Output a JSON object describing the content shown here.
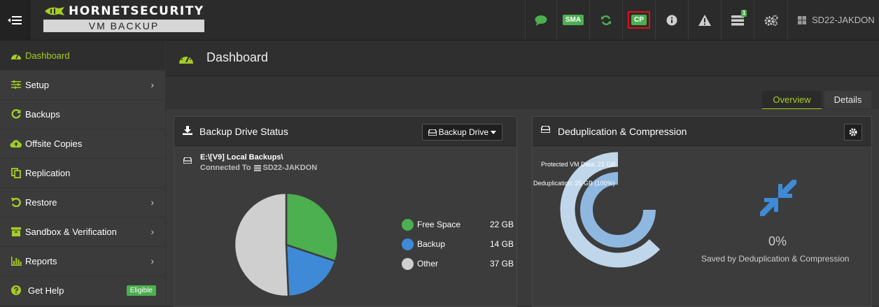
{
  "brand": {
    "name": "HORNETSECURITY",
    "product": "VM BACKUP"
  },
  "toolbar": {
    "sma_label": "SMA",
    "cp_label": "CP",
    "notifications_count": "1",
    "host_name": "SD22-JAKDON"
  },
  "sidebar": {
    "items": [
      {
        "label": "Dashboard",
        "icon": "dashboard-icon"
      },
      {
        "label": "Setup",
        "icon": "sliders-icon"
      },
      {
        "label": "Backups",
        "icon": "refresh-icon"
      },
      {
        "label": "Offsite Copies",
        "icon": "cloud-upload-icon"
      },
      {
        "label": "Replication",
        "icon": "copy-icon"
      },
      {
        "label": "Restore",
        "icon": "undo-icon"
      },
      {
        "label": "Sandbox & Verification",
        "icon": "archive-icon"
      },
      {
        "label": "Reports",
        "icon": "bar-chart-icon"
      },
      {
        "label": "Get Help",
        "icon": "question-icon"
      }
    ],
    "eligible_badge": "Eligible"
  },
  "page": {
    "title": "Dashboard"
  },
  "tabs": {
    "overview": "Overview",
    "details": "Details"
  },
  "backup_drive_panel": {
    "title": "Backup Drive Status",
    "drive_button": "Backup Drive",
    "drive_path": "E:\\[V9] Local Backups\\",
    "connected_prefix": "Connected To",
    "connected_host": "SD22-JAKDON"
  },
  "dedup_panel": {
    "title": "Deduplication & Compression",
    "protected_label": "Protected VM Data: 21 GB",
    "dedup_label": "Deduplication: 25 GB (100%)",
    "saved_percent": "0%",
    "saved_caption": "Saved by Deduplication & Compression"
  },
  "chart_data": [
    {
      "type": "pie",
      "categories": [
        "Free Space",
        "Backup",
        "Other"
      ],
      "values": [
        22,
        14,
        37
      ],
      "value_labels": [
        "22 GB",
        "14 GB",
        "37 GB"
      ],
      "unit": "GB",
      "colors": [
        "#4caf50",
        "#3e8ad6",
        "#cfcfcf"
      ],
      "legend": "right"
    },
    {
      "type": "pie",
      "categories": [
        "Protected VM Data",
        "Deduplication"
      ],
      "values": [
        21,
        25
      ],
      "value_labels": [
        "21 GB",
        "25 GB (100%)"
      ],
      "unit": "GB",
      "colors": [
        "#c0d6ea",
        "#8fb8e0"
      ],
      "legend": "none"
    }
  ],
  "colors": {
    "accent": "#a6cd24",
    "green": "#4caf50",
    "blue": "#3e8ad6",
    "alert_red": "#e0101a"
  }
}
